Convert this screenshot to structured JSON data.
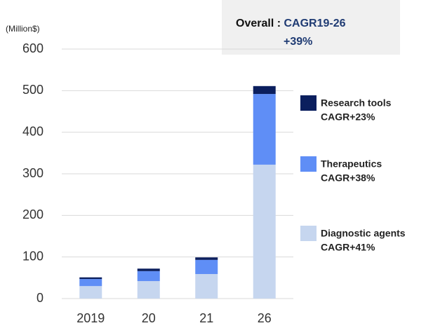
{
  "chart_data": {
    "type": "stacked_bar",
    "unit_label": "(Million$)",
    "annotation": {
      "label": "Overall :",
      "metric": "CAGR19-26",
      "value": "+39%"
    },
    "categories": [
      "2019",
      "20",
      "21",
      "26"
    ],
    "series": [
      {
        "name": "Diagnostic agents",
        "note": "CAGR+41%",
        "color": "#c6d6ef",
        "values": [
          30,
          42,
          59,
          322
        ]
      },
      {
        "name": "Therapeutics",
        "note": "CAGR+38%",
        "color": "#5f8ef6",
        "values": [
          17,
          24,
          34,
          170
        ]
      },
      {
        "name": "Research tools",
        "note": "CAGR+23%",
        "color": "#0b1f5e",
        "values": [
          4,
          6,
          6,
          19
        ]
      }
    ],
    "ylim": [
      0,
      600
    ],
    "yticks": [
      0,
      100,
      200,
      300,
      400,
      500,
      600
    ],
    "grid": true
  }
}
